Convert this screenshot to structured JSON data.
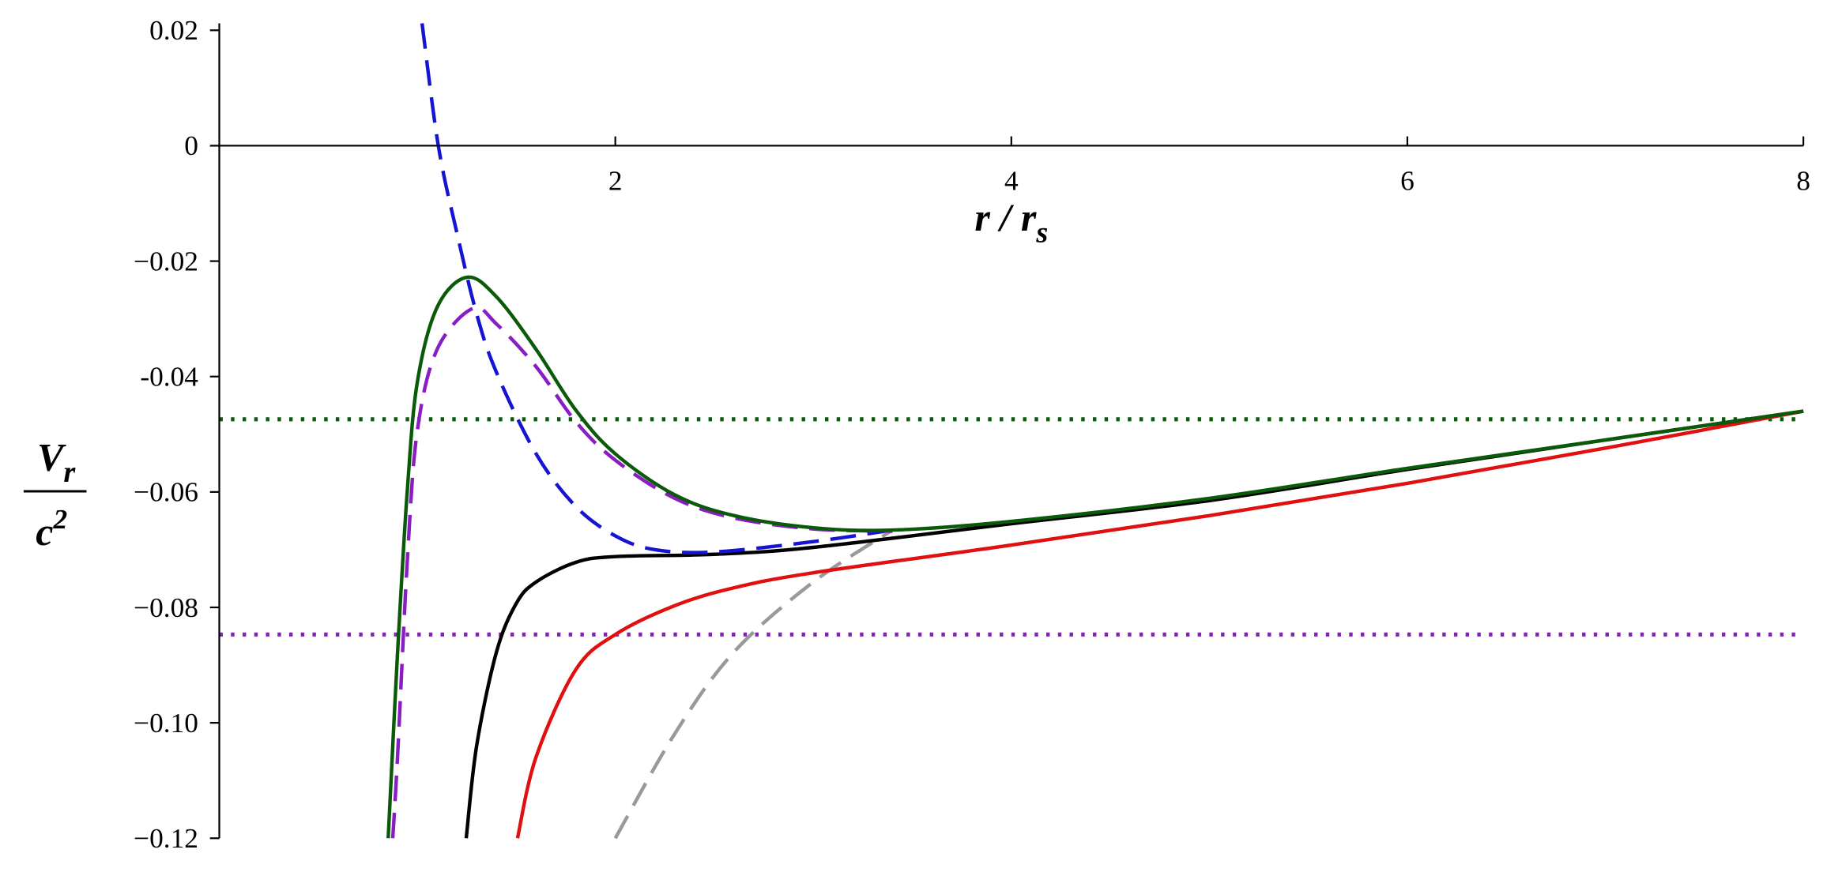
{
  "chart_data": {
    "type": "line",
    "x_label": {
      "text": "r / r",
      "subscript": "s"
    },
    "y_label": {
      "numerator": "V",
      "numerator_subscript": "r",
      "denominator": "c",
      "denominator_superscript": "2"
    },
    "xlim": [
      0,
      8
    ],
    "ylim": [
      -0.12,
      0.02
    ],
    "xticks": [
      2,
      4,
      6,
      8
    ],
    "yticks": [
      0.02,
      0,
      {
        "value": -0.02,
        "label": "−0.02"
      },
      {
        "value": -0.04,
        "label": "-0.04"
      },
      {
        "value": -0.06,
        "label": "−0.06"
      },
      {
        "value": -0.08,
        "label": "−0.08"
      },
      {
        "value": -0.1,
        "label": "−0.10"
      },
      {
        "value": -0.12,
        "label": "−0.12"
      }
    ],
    "series": [
      {
        "color": "#0a5a0a",
        "dash": "dotted",
        "x": [
          0,
          8
        ],
        "values": [
          -0.0474,
          -0.0474
        ]
      },
      {
        "color": "#8a1cc4",
        "dash": "dotted",
        "x": [
          0,
          8
        ],
        "values": [
          -0.0847,
          -0.0847
        ]
      },
      {
        "color": "#999999",
        "dash": "dashed",
        "x": [
          2.0,
          2.3,
          2.6,
          3.0,
          3.4
        ],
        "values": [
          -0.12,
          -0.1019,
          -0.0877,
          -0.0756,
          -0.0666
        ]
      },
      {
        "color": "#e01010",
        "dash": "solid",
        "x": [
          1.506,
          1.6,
          1.8,
          2.0,
          2.3,
          2.6,
          3.0,
          4,
          5,
          6,
          7,
          8
        ],
        "values": [
          -0.12,
          -0.1059,
          -0.0908,
          -0.0847,
          -0.0797,
          -0.0766,
          -0.074,
          -0.0692,
          -0.0641,
          -0.0585,
          -0.0524,
          -0.046
        ]
      },
      {
        "color": "#000000",
        "dash": "solid",
        "x": [
          1.247,
          1.3,
          1.4,
          1.5,
          1.6,
          1.8,
          2.0,
          2.5,
          3.0,
          4,
          5,
          6,
          7,
          8
        ],
        "values": [
          -0.12,
          -0.1039,
          -0.0877,
          -0.0793,
          -0.0756,
          -0.0722,
          -0.0712,
          -0.0708,
          -0.0696,
          -0.0655,
          -0.0615,
          -0.0561,
          -0.051,
          -0.046
        ]
      },
      {
        "color": "#1414d2",
        "dash": "dashed",
        "x": [
          1.024,
          1.106,
          1.2,
          1.3,
          1.4,
          1.6,
          1.8,
          2.0,
          2.2,
          2.5,
          3.0,
          3.4
        ],
        "values": [
          0.0212,
          0,
          -0.0151,
          -0.0292,
          -0.0393,
          -0.0534,
          -0.0625,
          -0.0676,
          -0.07,
          -0.0704,
          -0.0686,
          -0.0666
        ]
      },
      {
        "color": "#8a1cc4",
        "dash": "dashed",
        "x": [
          0.876,
          0.9,
          0.95,
          1.0,
          1.1,
          1.28,
          1.4,
          1.6,
          1.8,
          2.0,
          2.3,
          2.6,
          3.0,
          3.4
        ],
        "values": [
          -0.12,
          -0.106,
          -0.0716,
          -0.0494,
          -0.0353,
          -0.0282,
          -0.0309,
          -0.0383,
          -0.0478,
          -0.0545,
          -0.0611,
          -0.0645,
          -0.0664,
          -0.0668
        ]
      },
      {
        "color": "#0a5a0a",
        "dash": "solid",
        "x": [
          0.853,
          0.9,
          0.95,
          1.0,
          1.1,
          1.25,
          1.4,
          1.6,
          1.8,
          2.0,
          2.3,
          2.6,
          3.0,
          3.4,
          4,
          5,
          6,
          7,
          8
        ],
        "values": [
          -0.12,
          -0.088,
          -0.0595,
          -0.041,
          -0.028,
          -0.0228,
          -0.0262,
          -0.0353,
          -0.0458,
          -0.0534,
          -0.0605,
          -0.0641,
          -0.0662,
          -0.0666,
          -0.0651,
          -0.0611,
          -0.0559,
          -0.051,
          -0.046
        ]
      }
    ]
  }
}
